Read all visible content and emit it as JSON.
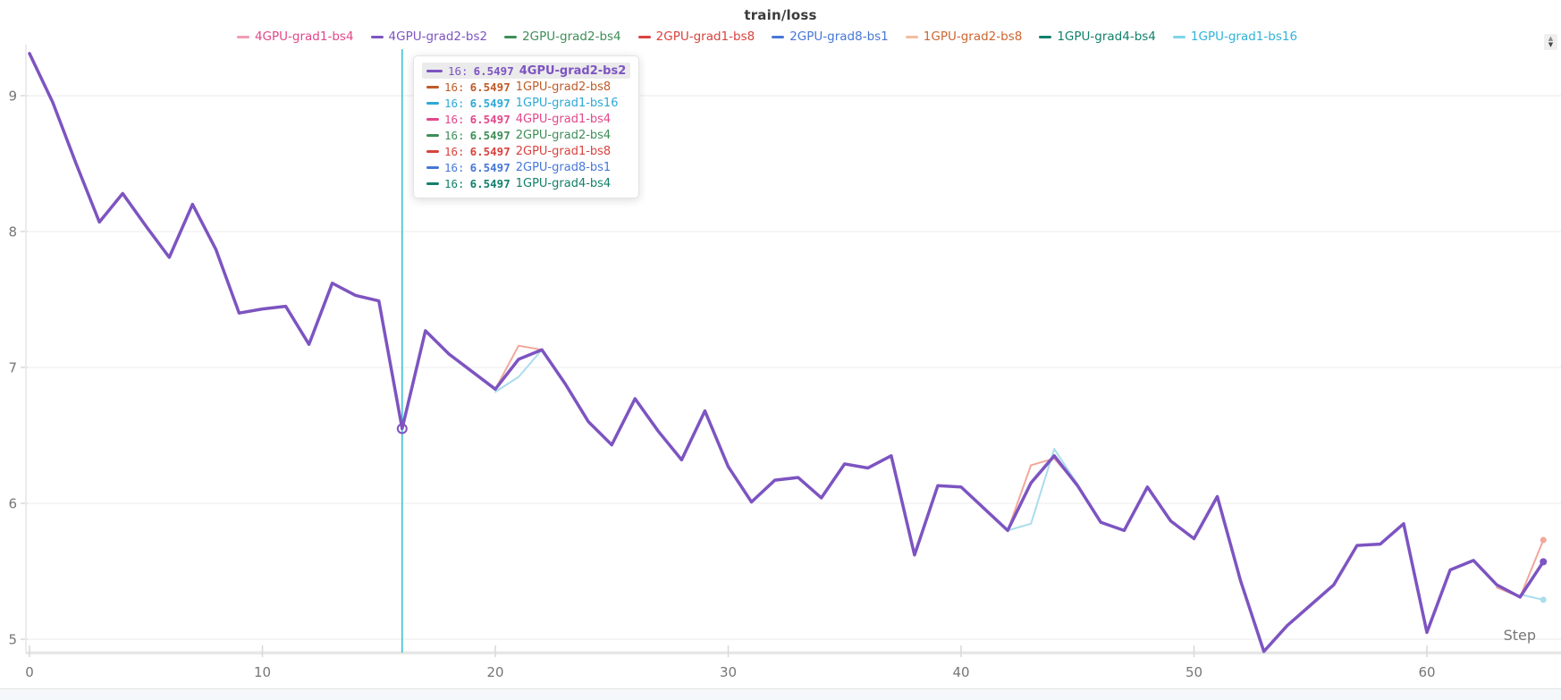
{
  "title": "train/loss",
  "colors": {
    "accent_purple": "#7d54c1",
    "crosshair": "#2ec0d2",
    "grid": "#efefef",
    "axis_line": "#ececec",
    "baseline": "#e7e7e7",
    "tick": "#d8d8d8",
    "axis_text": "#767676",
    "tooltip_highlight_bg": "#ebebeb",
    "panel_divider": "#e3e3e3",
    "bottom_strip": "#f5f8fa"
  },
  "legend": {
    "items": [
      {
        "label": "4GPU-grad1-bs4",
        "color": "#e2478a",
        "swatch": "#f09cb2"
      },
      {
        "label": "4GPU-grad2-bs2",
        "color": "#7d54c1",
        "swatch": "#7d54c1"
      },
      {
        "label": "2GPU-grad2-bs4",
        "color": "#3e8e58",
        "swatch": "#3e8e58"
      },
      {
        "label": "2GPU-grad1-bs8",
        "color": "#d9423e",
        "swatch": "#d9423e"
      },
      {
        "label": "2GPU-grad8-bs1",
        "color": "#4677d8",
        "swatch": "#4677d8"
      },
      {
        "label": "1GPU-grad2-bs8",
        "color": "#cd6631",
        "swatch": "#f4bd9e"
      },
      {
        "label": "1GPU-grad4-bs4",
        "color": "#12806b",
        "swatch": "#12806b"
      },
      {
        "label": "1GPU-grad1-bs16",
        "color": "#31b3d9",
        "swatch": "#7fd4e8"
      }
    ]
  },
  "tooltip": {
    "rows": [
      {
        "step": "16",
        "value": "6.5497",
        "name": "4GPU-grad2-bs2",
        "color": "#7d54c1",
        "highlighted": true
      },
      {
        "step": "16",
        "value": "6.5497",
        "name": "1GPU-grad2-bs8",
        "color": "#bf5b28",
        "highlighted": false
      },
      {
        "step": "16",
        "value": "6.5497",
        "name": "1GPU-grad1-bs16",
        "color": "#2ea9d6",
        "highlighted": false
      },
      {
        "step": "16",
        "value": "6.5497",
        "name": "4GPU-grad1-bs4",
        "color": "#e2478a",
        "highlighted": false
      },
      {
        "step": "16",
        "value": "6.5497",
        "name": "2GPU-grad2-bs4",
        "color": "#3e8e58",
        "highlighted": false
      },
      {
        "step": "16",
        "value": "6.5497",
        "name": "2GPU-grad1-bs8",
        "color": "#d9423e",
        "highlighted": false
      },
      {
        "step": "16",
        "value": "6.5497",
        "name": "2GPU-grad8-bs1",
        "color": "#4677d8",
        "highlighted": false
      },
      {
        "step": "16",
        "value": "6.5497",
        "name": "1GPU-grad4-bs4",
        "color": "#12806b",
        "highlighted": false
      }
    ]
  },
  "stepper": {
    "up": "▲",
    "down": "▼"
  },
  "chart_data": {
    "type": "line",
    "title": "train/loss",
    "xlabel": "Step",
    "ylabel": "",
    "x_ticks": [
      0,
      10,
      20,
      30,
      40,
      50,
      60
    ],
    "y_ticks": [
      5,
      6,
      7,
      8,
      9
    ],
    "x_range": [
      0,
      65.8
    ],
    "y_range": [
      4.88,
      9.35
    ],
    "grid": true,
    "legend_position": "top",
    "highlighted_series": "4GPU-grad2-bs2",
    "crosshair": {
      "step": 16,
      "value": 6.5497
    },
    "overlap_note": "All eight series overlap the highlighted purple curve except where deviation segments are listed",
    "main_series": {
      "name": "4GPU-grad2-bs2",
      "color": "#7d54c1",
      "steps_start": 0,
      "values": [
        9.31,
        8.95,
        8.5,
        8.07,
        8.28,
        8.04,
        7.81,
        8.2,
        7.87,
        7.4,
        7.43,
        7.45,
        7.17,
        7.62,
        7.53,
        7.49,
        6.5497,
        7.27,
        7.1,
        6.97,
        6.84,
        7.06,
        7.13,
        6.88,
        6.6,
        6.43,
        6.77,
        6.53,
        6.32,
        6.68,
        6.27,
        6.01,
        6.17,
        6.19,
        6.04,
        6.29,
        6.26,
        6.35,
        5.62,
        6.13,
        6.12,
        5.96,
        5.8,
        6.15,
        6.35,
        6.13,
        5.86,
        5.8,
        6.12,
        5.87,
        5.74,
        6.05,
        5.43,
        4.91,
        5.1,
        5.25,
        5.4,
        5.69,
        5.7,
        5.85,
        5.05,
        5.51,
        5.58,
        5.4,
        5.31,
        5.57
      ]
    },
    "deviation_series": [
      {
        "name": "1GPU-grad2-bs8",
        "color": "#f2a79a",
        "segments": [
          [
            [
              20,
              6.84
            ],
            [
              21,
              7.16
            ],
            [
              22,
              7.13
            ]
          ],
          [
            [
              42,
              5.8
            ],
            [
              43,
              6.28
            ],
            [
              44,
              6.33
            ],
            [
              45,
              6.13
            ]
          ],
          [
            [
              63,
              5.38
            ],
            [
              64,
              5.31
            ],
            [
              65,
              5.73
            ]
          ]
        ]
      },
      {
        "name": "1GPU-grad1-bs16",
        "color": "#a9dded",
        "segments": [
          [
            [
              20,
              6.82
            ],
            [
              21,
              6.93
            ],
            [
              22,
              7.13
            ]
          ],
          [
            [
              42,
              5.8
            ],
            [
              43,
              5.85
            ],
            [
              44,
              6.4
            ],
            [
              45,
              6.14
            ]
          ],
          [
            [
              64,
              5.33
            ],
            [
              65,
              5.29
            ]
          ]
        ]
      }
    ]
  }
}
